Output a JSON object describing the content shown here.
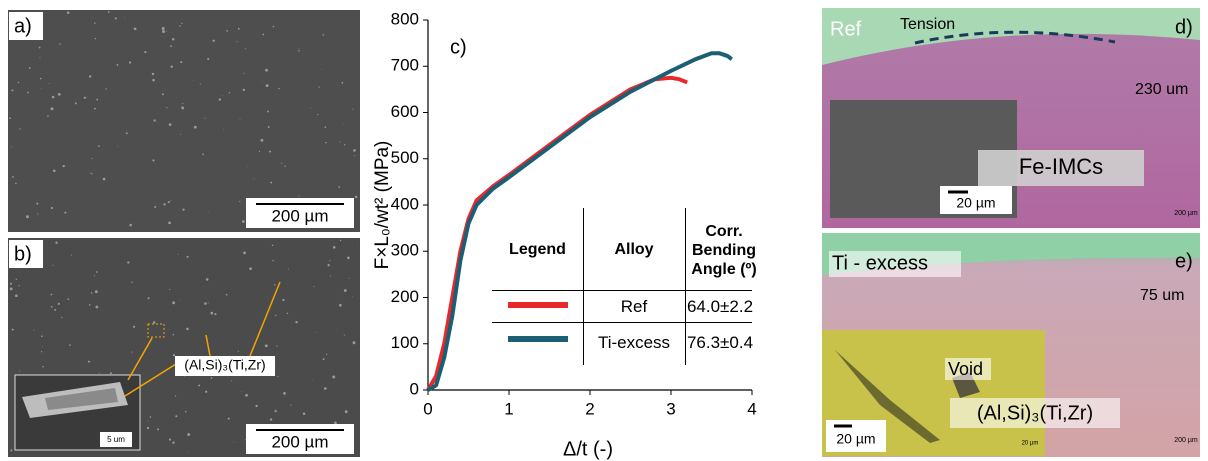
{
  "panels": {
    "a": {
      "label": "a)",
      "scale": "200 µm"
    },
    "b": {
      "label": "b)",
      "scale": "200 µm",
      "inset_scale": "5 um",
      "annotation": "(Al,Si)₃(Ti,Zr)"
    },
    "d": {
      "label": "d)",
      "alloy": "Ref",
      "arrow": "Tension",
      "depth": "230 um",
      "inset_scale": "20 µm",
      "annotation": "Fe-IMCs",
      "scale": "200 µm"
    },
    "e": {
      "label": "e)",
      "alloy": "Ti - excess",
      "depth": "75 um",
      "inset_scale": "20 µm",
      "annotation_void": "Void",
      "annotation_phase": "(Al,Si)₃(Ti,Zr)",
      "tiny_scale": "20 µm",
      "scale": "200 µm"
    }
  },
  "chart_data": {
    "type": "line",
    "panel_label": "c)",
    "xlabel": "Δ/t (-)",
    "ylabel": "F×L₀/wt² (MPa)",
    "xlim": [
      0,
      4
    ],
    "xticks": [
      0,
      1,
      2,
      3,
      4
    ],
    "ylim": [
      0,
      800
    ],
    "yticks": [
      0,
      100,
      200,
      300,
      400,
      500,
      600,
      700,
      800
    ],
    "series": [
      {
        "name": "Ref",
        "color": "#e8282b",
        "x": [
          0,
          0.1,
          0.2,
          0.3,
          0.4,
          0.5,
          0.6,
          0.8,
          1,
          1.5,
          2,
          2.5,
          2.8,
          3,
          3.1,
          3.2
        ],
        "values": [
          0,
          30,
          100,
          200,
          300,
          370,
          410,
          440,
          465,
          530,
          595,
          650,
          672,
          675,
          672,
          665
        ]
      },
      {
        "name": "Ti-excess",
        "color": "#1a5f73",
        "x": [
          0,
          0.1,
          0.2,
          0.3,
          0.4,
          0.5,
          0.6,
          0.8,
          1,
          1.5,
          2,
          2.5,
          3,
          3.3,
          3.5,
          3.6,
          3.7,
          3.75
        ],
        "values": [
          0,
          10,
          70,
          160,
          280,
          360,
          400,
          435,
          460,
          525,
          590,
          645,
          690,
          715,
          728,
          728,
          722,
          715
        ]
      }
    ],
    "table": {
      "headers": [
        "Legend",
        "Alloy",
        "Corr. Bending Angle (º)"
      ],
      "angles": [
        "64.0±2.2",
        "76.3±0.4"
      ]
    }
  }
}
